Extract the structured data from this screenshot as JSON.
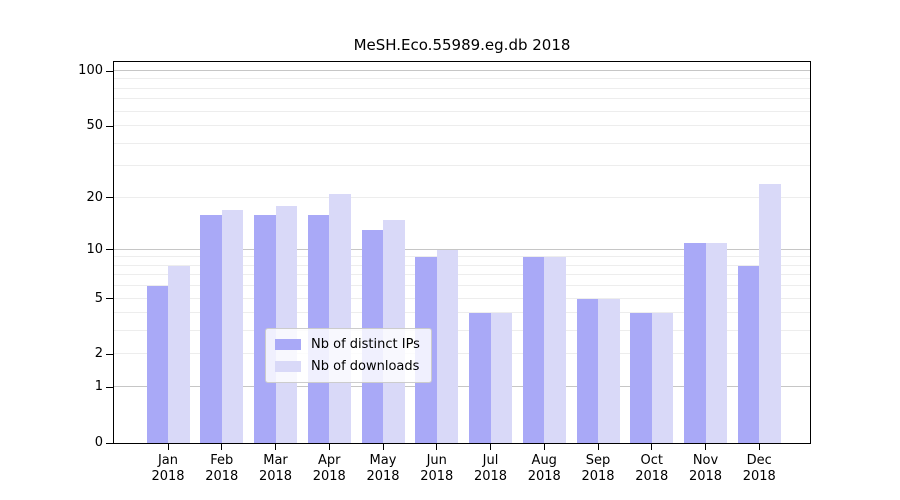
{
  "chart_data": {
    "type": "bar",
    "title": "MeSH.Eco.55989.eg.db 2018",
    "categories": [
      "Jan",
      "Feb",
      "Mar",
      "Apr",
      "May",
      "Jun",
      "Jul",
      "Aug",
      "Sep",
      "Oct",
      "Nov",
      "Dec"
    ],
    "x_sublabel": "2018",
    "series": [
      {
        "name": "Nb of distinct IPs",
        "color": "#a9a9f7",
        "values": [
          6,
          16,
          16,
          16,
          13,
          9,
          4,
          9,
          5,
          4,
          11,
          8
        ]
      },
      {
        "name": "Nb of downloads",
        "color": "#d9d9f8",
        "values": [
          8,
          17,
          18,
          21,
          15,
          10,
          4,
          9,
          5,
          4,
          11,
          24
        ]
      }
    ],
    "y_axis": {
      "scale": "log1p",
      "max": 112,
      "tick_labels": [
        "100",
        "50",
        "20",
        "10",
        "5",
        "2",
        "1",
        "0"
      ],
      "tick_values": [
        100,
        50,
        20,
        10,
        5,
        2,
        1,
        0
      ],
      "major_gridlines": [
        1,
        10,
        100
      ],
      "minor_gridlines": [
        2,
        3,
        4,
        5,
        6,
        7,
        8,
        9,
        20,
        30,
        40,
        50,
        60,
        70,
        80,
        90
      ]
    },
    "grid": true,
    "legend_position": "lower-center"
  },
  "colors": {
    "bar_distinct_ips": "#a9a9f7",
    "bar_downloads": "#d9d9f8",
    "grid_minor": "#ededed",
    "grid_major": "#c6c6c6",
    "axis": "#000000",
    "legend_border": "#cccccc",
    "background": "#ffffff"
  }
}
